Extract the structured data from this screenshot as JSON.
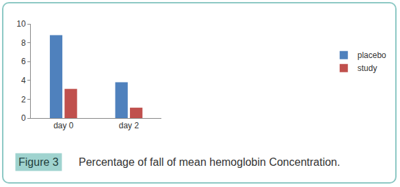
{
  "chart_data": {
    "type": "bar",
    "title": "Figure 3",
    "subtitle": "Percentage of fall of mean hemoglobin Concentration.",
    "categories": [
      "day 0",
      "day 2"
    ],
    "series": [
      {
        "name": "placebo",
        "color": "#4f81bd",
        "values": [
          8.8,
          3.8
        ]
      },
      {
        "name": "study",
        "color": "#c0504d",
        "values": [
          3.1,
          1.1
        ]
      }
    ],
    "ylim": [
      0,
      10
    ],
    "yticks": [
      0,
      2,
      4,
      6,
      8,
      10
    ],
    "grid": false,
    "legend": "right"
  }
}
